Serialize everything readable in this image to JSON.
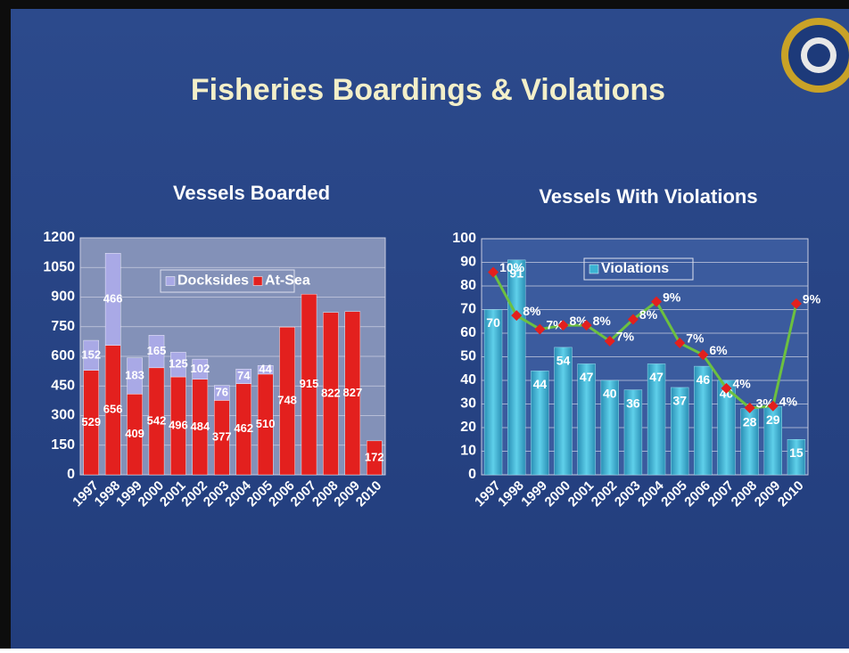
{
  "title": "Fisheries Boardings & Violations",
  "chart_data": [
    {
      "type": "stacked_bar",
      "title": "Vessels Boarded",
      "categories": [
        "1997",
        "1998",
        "1999",
        "2000",
        "2001",
        "2002",
        "2003",
        "2004",
        "2005",
        "2006",
        "2007",
        "2008",
        "2009",
        "2010"
      ],
      "series": [
        {
          "name": "Docksides",
          "color": "#a9a9e6",
          "values": [
            152,
            466,
            183,
            165,
            125,
            102,
            76,
            74,
            44,
            null,
            null,
            null,
            null,
            null
          ]
        },
        {
          "name": "At-Sea",
          "color": "#e3201e",
          "values": [
            529,
            656,
            409,
            542,
            496,
            484,
            377,
            462,
            510,
            748,
            915,
            822,
            827,
            172
          ]
        }
      ],
      "ylim": [
        0,
        1200
      ],
      "yticks": [
        0,
        150,
        300,
        450,
        600,
        750,
        900,
        1050,
        1200
      ],
      "grid": true,
      "legend": "top"
    },
    {
      "type": "bar_line",
      "title": "Vessels With Violations",
      "categories": [
        "1997",
        "1998",
        "1999",
        "2000",
        "2001",
        "2002",
        "2003",
        "2004",
        "2005",
        "2006",
        "2007",
        "2008",
        "2009",
        "2010"
      ],
      "series": [
        {
          "name": "Violations",
          "color": "#3bb3d3",
          "values": [
            70,
            91,
            44,
            54,
            47,
            40,
            36,
            47,
            37,
            46,
            40,
            28,
            29,
            15
          ]
        },
        {
          "color": "#6cc040",
          "marker_color": "#e3201e",
          "axis": "y2",
          "values": [
            10.3,
            8.1,
            7.4,
            7.6,
            7.6,
            6.8,
            7.9,
            8.8,
            6.7,
            6.1,
            4.4,
            3.4,
            3.5,
            8.7
          ],
          "value_labels": [
            "10%",
            "8%",
            "7%",
            "8%",
            "8%",
            "7%",
            "8%",
            "9%",
            "7%",
            "6%",
            "4%",
            "3%",
            "4%",
            "9%"
          ]
        }
      ],
      "ylim": [
        0,
        100
      ],
      "yticks": [
        0,
        10,
        20,
        30,
        40,
        50,
        60,
        70,
        80,
        90,
        100
      ],
      "y2lim": [
        0,
        12
      ],
      "grid": true,
      "legend": "top"
    }
  ]
}
